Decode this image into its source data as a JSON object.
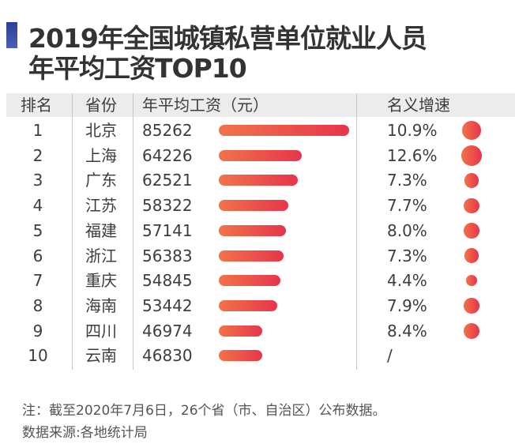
{
  "title_lines": [
    "2019年全国城镇私营单位就业人员",
    "年平均工资TOP10"
  ],
  "accent_color": "#2c3f98",
  "bar_gradient": [
    "#f07448",
    "#e8344c"
  ],
  "chart_data": {
    "type": "table",
    "columns": [
      "排名",
      "省份",
      "年平均工资（元）",
      "名义增速"
    ],
    "rows": [
      {
        "rank": "1",
        "province": "北京",
        "wage": 85262,
        "growth": "10.9%",
        "growth_value": 10.9
      },
      {
        "rank": "2",
        "province": "上海",
        "wage": 64226,
        "growth": "12.6%",
        "growth_value": 12.6
      },
      {
        "rank": "3",
        "province": "广东",
        "wage": 62521,
        "growth": "7.3%",
        "growth_value": 7.3
      },
      {
        "rank": "4",
        "province": "江苏",
        "wage": 58322,
        "growth": "7.7%",
        "growth_value": 7.7
      },
      {
        "rank": "5",
        "province": "福建",
        "wage": 57141,
        "growth": "8.0%",
        "growth_value": 8.0
      },
      {
        "rank": "6",
        "province": "浙江",
        "wage": 56383,
        "growth": "7.3%",
        "growth_value": 7.3
      },
      {
        "rank": "7",
        "province": "重庆",
        "wage": 54845,
        "growth": "4.4%",
        "growth_value": 4.4
      },
      {
        "rank": "8",
        "province": "海南",
        "wage": 53442,
        "growth": "7.9%",
        "growth_value": 7.9
      },
      {
        "rank": "9",
        "province": "四川",
        "wage": 46974,
        "growth": "8.4%",
        "growth_value": 8.4
      },
      {
        "rank": "10",
        "province": "云南",
        "wage": 46830,
        "growth": "/",
        "growth_value": null
      }
    ]
  },
  "notes": [
    "注：截至2020年7月6日，26个省（市、自治区）公布数据。",
    "数据来源:各地统计局"
  ]
}
